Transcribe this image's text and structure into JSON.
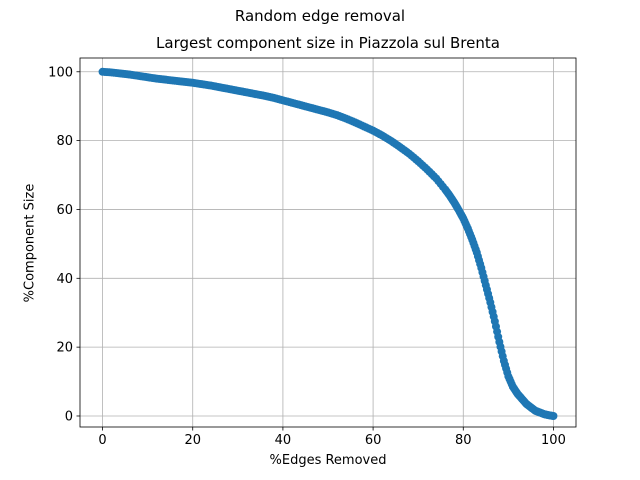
{
  "chart_data": {
    "type": "scatter",
    "suptitle": "Random edge removal",
    "title": "Largest component size in Piazzola sul Brenta",
    "xlabel": "%Edges Removed",
    "ylabel": "%Component Size",
    "xlim": [
      -5,
      105
    ],
    "ylim": [
      -3.2,
      104
    ],
    "xticks": [
      0,
      20,
      40,
      60,
      80,
      100
    ],
    "yticks": [
      0,
      20,
      40,
      60,
      80,
      100
    ],
    "grid": true,
    "marker_color": "#1f77b4",
    "series": [
      {
        "x": [
          0,
          2,
          4,
          6,
          8,
          10,
          12,
          14,
          16,
          18,
          20,
          22,
          24,
          26,
          28,
          30,
          32,
          34,
          36,
          38,
          40,
          42,
          44,
          46,
          48,
          50,
          52,
          54,
          56,
          58,
          60,
          62,
          64,
          66,
          68,
          70,
          72,
          74,
          76,
          77,
          78,
          79,
          80,
          81,
          82,
          83,
          84,
          85,
          86,
          87,
          88,
          89,
          90,
          91,
          92,
          93,
          94,
          95,
          96,
          97,
          98,
          99,
          100
        ],
        "y": [
          100,
          99.8,
          99.5,
          99.2,
          98.8,
          98.4,
          98.0,
          97.7,
          97.4,
          97.1,
          96.8,
          96.4,
          96.0,
          95.5,
          95.0,
          94.5,
          94.0,
          93.5,
          93.0,
          92.4,
          91.7,
          91.0,
          90.3,
          89.6,
          88.9,
          88.2,
          87.4,
          86.4,
          85.3,
          84.1,
          82.9,
          81.5,
          79.9,
          78.1,
          76.2,
          74.0,
          71.6,
          69.0,
          65.8,
          64.0,
          62.0,
          59.8,
          57.4,
          54.5,
          51.2,
          47.5,
          43.0,
          38.0,
          33.0,
          27.5,
          21.5,
          16.0,
          11.5,
          8.5,
          6.5,
          5.0,
          3.5,
          2.5,
          1.5,
          1.0,
          0.5,
          0.2,
          0.0
        ]
      }
    ]
  }
}
